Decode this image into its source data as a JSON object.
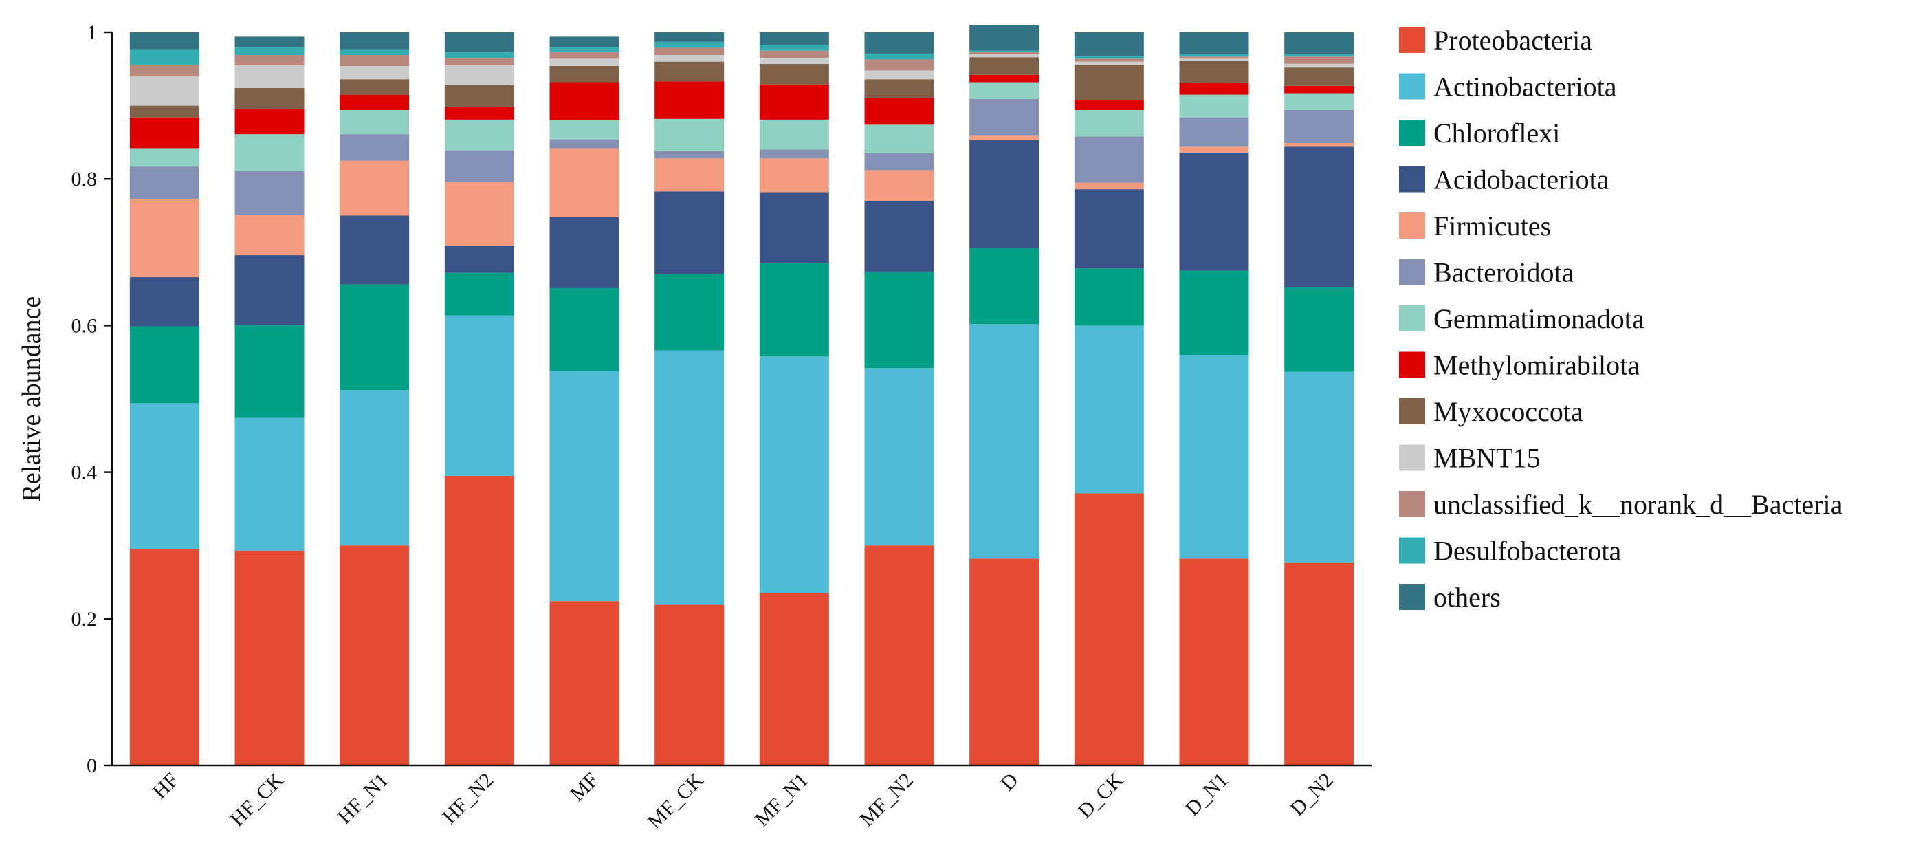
{
  "chart_data": {
    "type": "bar",
    "stacked": true,
    "title": "",
    "xlabel": "",
    "ylabel": "Relative abundance",
    "ylim": [
      0,
      1
    ],
    "yticks": [
      0,
      0.2,
      0.4,
      0.6,
      0.8,
      1
    ],
    "ytick_labels": [
      "0",
      "0.2",
      "0.4",
      "0.6",
      "0.8",
      "1"
    ],
    "categories": [
      "HF",
      "HF_CK",
      "HF_N1",
      "HF_N2",
      "MF",
      "MF_CK",
      "MF_N1",
      "MF_N2",
      "D",
      "D_CK",
      "D_N1",
      "D_N2"
    ],
    "legend_position": "right",
    "series": [
      {
        "name": "Proteobacteria",
        "color": "#E34B33",
        "values": [
          0.295,
          0.293,
          0.3,
          0.395,
          0.224,
          0.219,
          0.235,
          0.3,
          0.282,
          0.371,
          0.282,
          0.277
        ]
      },
      {
        "name": "Actinobacteriota",
        "color": "#4DBAD6",
        "values": [
          0.199,
          0.181,
          0.212,
          0.219,
          0.314,
          0.347,
          0.323,
          0.242,
          0.32,
          0.229,
          0.278,
          0.26
        ]
      },
      {
        "name": "Chloroflexi",
        "color": "#009F86",
        "values": [
          0.105,
          0.127,
          0.144,
          0.058,
          0.113,
          0.104,
          0.127,
          0.131,
          0.104,
          0.078,
          0.115,
          0.115
        ]
      },
      {
        "name": "Acidobacteriota",
        "color": "#3B5488",
        "values": [
          0.067,
          0.095,
          0.094,
          0.037,
          0.097,
          0.113,
          0.097,
          0.097,
          0.147,
          0.108,
          0.161,
          0.192
        ]
      },
      {
        "name": "Firmicutes",
        "color": "#F29B7F",
        "values": [
          0.107,
          0.055,
          0.075,
          0.087,
          0.094,
          0.045,
          0.046,
          0.042,
          0.006,
          0.009,
          0.008,
          0.005
        ]
      },
      {
        "name": "Bacteroidota",
        "color": "#8491B4",
        "values": [
          0.044,
          0.06,
          0.036,
          0.043,
          0.012,
          0.01,
          0.012,
          0.023,
          0.05,
          0.063,
          0.04,
          0.045
        ]
      },
      {
        "name": "Gemmatimonadota",
        "color": "#91D1C2",
        "values": [
          0.025,
          0.05,
          0.033,
          0.042,
          0.026,
          0.044,
          0.041,
          0.039,
          0.023,
          0.036,
          0.031,
          0.023
        ]
      },
      {
        "name": "Methylomirabilota",
        "color": "#DC0000",
        "values": [
          0.042,
          0.034,
          0.021,
          0.017,
          0.052,
          0.051,
          0.048,
          0.036,
          0.01,
          0.014,
          0.016,
          0.01
        ]
      },
      {
        "name": "Myxococcota",
        "color": "#7E6148",
        "values": [
          0.016,
          0.029,
          0.021,
          0.03,
          0.022,
          0.027,
          0.028,
          0.026,
          0.024,
          0.048,
          0.03,
          0.025
        ]
      },
      {
        "name": "MBNT15",
        "color": "#CCCCCC",
        "values": [
          0.04,
          0.031,
          0.018,
          0.027,
          0.01,
          0.009,
          0.008,
          0.012,
          0.004,
          0.004,
          0.003,
          0.005
        ]
      },
      {
        "name": "unclassified_k__norank_d__Bacteria",
        "color": "#B8877E",
        "values": [
          0.016,
          0.014,
          0.015,
          0.01,
          0.009,
          0.01,
          0.01,
          0.015,
          0.003,
          0.004,
          0.003,
          0.01
        ]
      },
      {
        "name": "Desulfobacterota",
        "color": "#33ADB0",
        "values": [
          0.021,
          0.011,
          0.008,
          0.008,
          0.007,
          0.008,
          0.008,
          0.008,
          0.002,
          0.004,
          0.003,
          0.003
        ]
      },
      {
        "name": "others",
        "color": "#337383",
        "values": [
          0.023,
          0.014,
          0.023,
          0.027,
          0.014,
          0.013,
          0.017,
          0.029,
          0.035,
          0.032,
          0.03,
          0.03
        ]
      }
    ]
  }
}
